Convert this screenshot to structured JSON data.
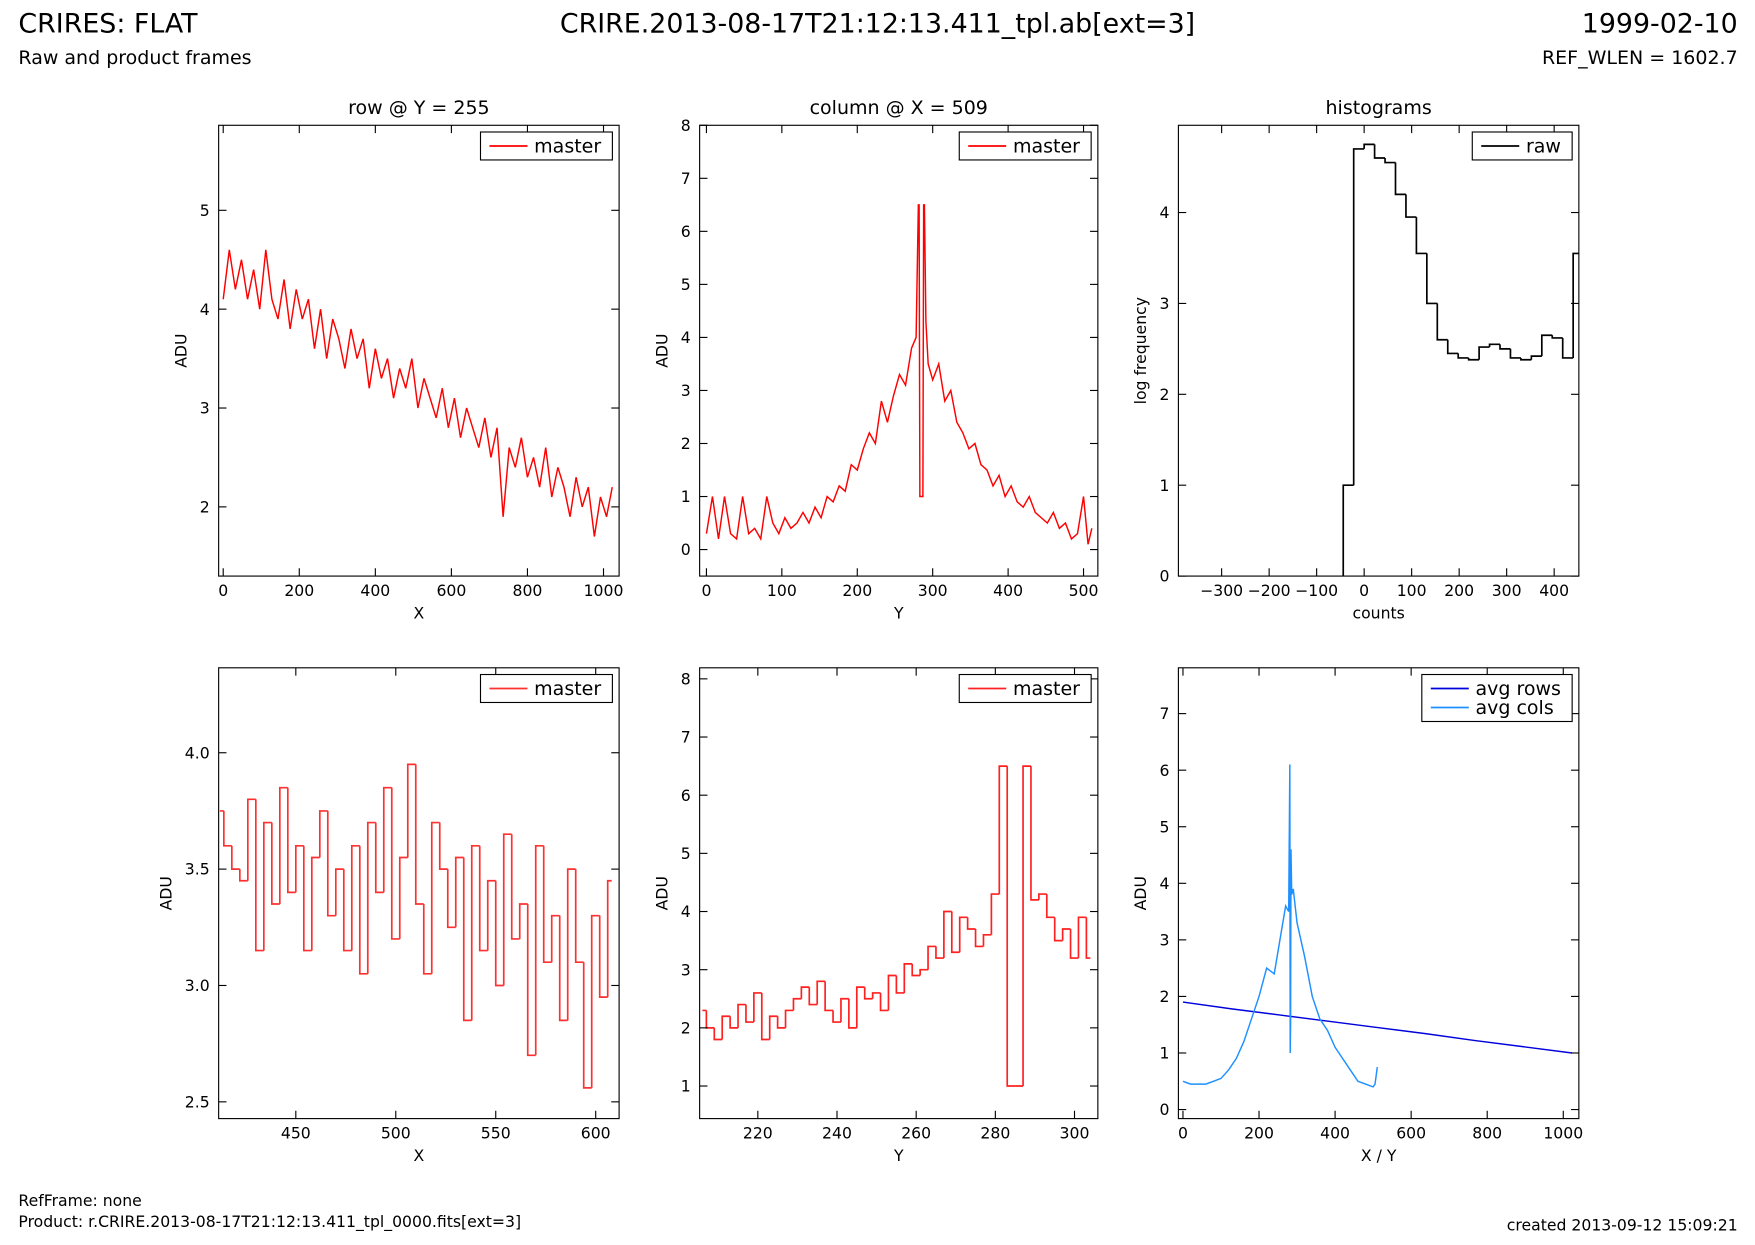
{
  "page": {
    "title": "CRIRES: FLAT",
    "subtitle": "Raw and product frames",
    "file": "CRIRE.2013-08-17T21:12:13.411_tpl.ab[ext=3]",
    "date": "1999-02-10",
    "ref_wlen": "REF_WLEN = 1602.7",
    "ref_frame": "RefFrame: none",
    "product": "Product: r.CRIRE.2013-08-17T21:12:13.411_tpl_0000.fits[ext=3]",
    "created": "created 2013-09-12 15:09:21"
  },
  "chart_data": [
    {
      "type": "line",
      "title": "row @ Y = 255",
      "xlabel": "X",
      "ylabel": "ADU",
      "xlim": [
        -12,
        1041
      ],
      "ylim": [
        1.3,
        5.86
      ],
      "xticks": [
        0,
        200,
        400,
        600,
        800,
        1000
      ],
      "yticks": [
        2,
        3,
        4,
        5
      ],
      "legend": "upper right",
      "series": [
        {
          "name": "master",
          "color": "#ff0000",
          "x": [
            0,
            16,
            32,
            48,
            64,
            80,
            96,
            112,
            128,
            144,
            160,
            176,
            192,
            208,
            224,
            240,
            256,
            272,
            288,
            304,
            320,
            336,
            352,
            368,
            384,
            400,
            416,
            432,
            448,
            464,
            480,
            496,
            512,
            528,
            544,
            560,
            576,
            592,
            608,
            624,
            640,
            656,
            672,
            688,
            704,
            720,
            736,
            752,
            768,
            784,
            800,
            816,
            832,
            848,
            864,
            880,
            896,
            912,
            928,
            944,
            960,
            976,
            992,
            1008,
            1023
          ],
          "values": [
            4.1,
            4.6,
            4.2,
            4.5,
            4.1,
            4.4,
            4.0,
            4.6,
            4.1,
            3.9,
            4.3,
            3.8,
            4.2,
            3.9,
            4.1,
            3.6,
            4.0,
            3.5,
            3.9,
            3.7,
            3.4,
            3.8,
            3.5,
            3.7,
            3.2,
            3.6,
            3.3,
            3.5,
            3.1,
            3.4,
            3.2,
            3.5,
            3.0,
            3.3,
            3.1,
            2.9,
            3.2,
            2.8,
            3.1,
            2.7,
            3.0,
            2.8,
            2.6,
            2.9,
            2.5,
            2.8,
            1.9,
            2.6,
            2.4,
            2.7,
            2.3,
            2.5,
            2.2,
            2.6,
            2.1,
            2.4,
            2.2,
            1.9,
            2.3,
            2.0,
            2.2,
            1.7,
            2.1,
            1.9,
            2.2
          ]
        }
      ]
    },
    {
      "type": "line",
      "title": "column @ X = 509",
      "xlabel": "Y",
      "ylabel": "ADU",
      "xlim": [
        -9,
        519
      ],
      "ylim": [
        -0.5,
        8
      ],
      "xticks": [
        0,
        100,
        200,
        300,
        400,
        500
      ],
      "yticks": [
        0,
        1,
        2,
        3,
        4,
        5,
        6,
        7,
        8
      ],
      "legend": "upper right",
      "series": [
        {
          "name": "master",
          "color": "#ff0000",
          "x": [
            0,
            8,
            16,
            24,
            32,
            40,
            48,
            56,
            64,
            72,
            80,
            88,
            96,
            104,
            112,
            120,
            128,
            136,
            144,
            152,
            160,
            168,
            176,
            184,
            192,
            200,
            208,
            216,
            224,
            232,
            240,
            248,
            256,
            264,
            272,
            278,
            281,
            282,
            283,
            285,
            287,
            288,
            289,
            291,
            294,
            300,
            308,
            316,
            324,
            332,
            340,
            348,
            356,
            364,
            372,
            380,
            388,
            396,
            404,
            412,
            420,
            428,
            436,
            444,
            452,
            460,
            468,
            476,
            484,
            492,
            500,
            506,
            511
          ],
          "values": [
            0.3,
            1.0,
            0.2,
            1.0,
            0.3,
            0.2,
            1.0,
            0.3,
            0.4,
            0.2,
            1.0,
            0.5,
            0.3,
            0.6,
            0.4,
            0.5,
            0.7,
            0.5,
            0.8,
            0.6,
            1.0,
            0.9,
            1.2,
            1.1,
            1.6,
            1.5,
            1.9,
            2.2,
            2.0,
            2.8,
            2.4,
            2.9,
            3.3,
            3.1,
            3.8,
            4.0,
            6.5,
            6.5,
            1.0,
            1.0,
            1.0,
            6.5,
            6.5,
            4.3,
            3.5,
            3.2,
            3.5,
            2.8,
            3.0,
            2.4,
            2.2,
            1.9,
            2.0,
            1.6,
            1.5,
            1.2,
            1.4,
            1.0,
            1.2,
            0.9,
            0.8,
            1.0,
            0.7,
            0.6,
            0.5,
            0.7,
            0.4,
            0.5,
            0.2,
            0.3,
            1.0,
            0.1,
            0.4
          ]
        }
      ]
    },
    {
      "type": "histogram",
      "title": "histograms",
      "xlabel": "counts",
      "ylabel": "log frequency",
      "xlim": [
        -391,
        452
      ],
      "ylim": [
        0,
        4.96
      ],
      "xticks": [
        {
          "value": -300,
          "label": "−300"
        },
        {
          "value": -200,
          "label": "−200"
        },
        {
          "value": -100,
          "label": "−100"
        },
        0,
        100,
        200,
        300,
        400
      ],
      "yticks": [
        0,
        1,
        2,
        3,
        4
      ],
      "legend": "upper right",
      "bins": [
        -44,
        -22,
        0,
        22,
        44,
        66,
        88,
        110,
        132,
        154,
        176,
        198,
        220,
        242,
        264,
        286,
        308,
        330,
        352,
        374,
        396,
        418,
        440,
        462
      ],
      "series": [
        {
          "name": "raw",
          "color": "#000000",
          "values": [
            1.0,
            4.7,
            4.75,
            4.6,
            4.55,
            4.2,
            3.95,
            3.55,
            3.0,
            2.6,
            2.45,
            2.4,
            2.38,
            2.52,
            2.55,
            2.5,
            2.4,
            2.38,
            2.42,
            2.65,
            2.62,
            2.4,
            3.55
          ]
        }
      ]
    },
    {
      "type": "line",
      "step": true,
      "xlabel": "X",
      "ylabel": "ADU",
      "xlim": [
        411.4,
        611.7
      ],
      "ylim": [
        2.428,
        4.365
      ],
      "xticks": [
        450,
        500,
        550,
        600
      ],
      "yticks": [
        2.5,
        {
          "value": 3,
          "label": "3.0"
        },
        3.5,
        {
          "value": 4,
          "label": "4.0"
        }
      ],
      "legend": "upper right",
      "series": [
        {
          "name": "master",
          "color": "#ff3030",
          "x": [
            412,
            416,
            420,
            424,
            428,
            432,
            436,
            440,
            444,
            448,
            452,
            456,
            460,
            464,
            468,
            472,
            476,
            480,
            484,
            488,
            492,
            496,
            500,
            504,
            508,
            512,
            516,
            520,
            524,
            528,
            532,
            536,
            540,
            544,
            548,
            552,
            556,
            560,
            564,
            568,
            572,
            576,
            580,
            584,
            588,
            592,
            596,
            600,
            604,
            608
          ],
          "values": [
            3.75,
            3.6,
            3.5,
            3.45,
            3.8,
            3.15,
            3.7,
            3.35,
            3.85,
            3.4,
            3.6,
            3.15,
            3.55,
            3.75,
            3.3,
            3.5,
            3.15,
            3.6,
            3.05,
            3.7,
            3.4,
            3.85,
            3.2,
            3.55,
            3.95,
            3.35,
            3.05,
            3.7,
            3.5,
            3.25,
            3.55,
            2.85,
            3.6,
            3.15,
            3.45,
            3.0,
            3.65,
            3.2,
            3.35,
            2.7,
            3.6,
            3.1,
            3.3,
            2.85,
            3.5,
            3.1,
            2.56,
            3.3,
            2.95,
            3.45
          ]
        }
      ]
    },
    {
      "type": "line",
      "step": true,
      "xlabel": "Y",
      "ylabel": "ADU",
      "xlim": [
        205.3,
        305.9
      ],
      "ylim": [
        0.44,
        8.19
      ],
      "xticks": [
        220,
        240,
        260,
        280,
        300
      ],
      "yticks": [
        1,
        2,
        3,
        4,
        5,
        6,
        7,
        8
      ],
      "legend": "upper right",
      "series": [
        {
          "name": "master",
          "color": "#ff2020",
          "x": [
            206,
            208,
            210,
            212,
            214,
            216,
            218,
            220,
            222,
            224,
            226,
            228,
            230,
            232,
            234,
            236,
            238,
            240,
            242,
            244,
            246,
            248,
            250,
            252,
            254,
            256,
            258,
            260,
            262,
            264,
            266,
            268,
            270,
            272,
            274,
            276,
            278,
            280,
            282,
            284,
            286,
            288,
            290,
            292,
            294,
            296,
            298,
            300,
            302,
            304
          ],
          "values": [
            2.3,
            2.0,
            1.8,
            2.2,
            2.0,
            2.4,
            2.1,
            2.6,
            1.8,
            2.2,
            2.0,
            2.3,
            2.5,
            2.7,
            2.4,
            2.8,
            2.3,
            2.1,
            2.5,
            2.0,
            2.7,
            2.5,
            2.6,
            2.3,
            2.9,
            2.6,
            3.1,
            2.9,
            3.0,
            3.4,
            3.2,
            4.0,
            3.3,
            3.9,
            3.7,
            3.4,
            3.6,
            4.3,
            6.5,
            1.0,
            1.0,
            6.5,
            4.2,
            4.3,
            3.9,
            3.5,
            3.7,
            3.2,
            3.9,
            3.2
          ]
        }
      ]
    },
    {
      "type": "line",
      "xlabel": "X / Y",
      "ylabel": "ADU",
      "xlim": [
        -12,
        1041
      ],
      "ylim": [
        -0.16,
        7.81
      ],
      "xticks": [
        0,
        200,
        400,
        600,
        800,
        1000
      ],
      "yticks": [
        0,
        1,
        2,
        3,
        4,
        5,
        6,
        7
      ],
      "legend": "upper right",
      "series": [
        {
          "name": "avg rows",
          "color": "#0000dd",
          "x": [
            0,
            128,
            256,
            384,
            512,
            640,
            768,
            896,
            1023
          ],
          "values": [
            1.9,
            1.78,
            1.67,
            1.56,
            1.45,
            1.34,
            1.22,
            1.11,
            1.0
          ]
        },
        {
          "name": "avg cols",
          "color": "#1e90ff",
          "x": [
            0,
            20,
            40,
            60,
            80,
            100,
            120,
            140,
            160,
            180,
            200,
            220,
            240,
            260,
            270,
            278,
            281,
            282,
            283,
            284,
            286,
            290,
            300,
            320,
            340,
            360,
            380,
            400,
            420,
            440,
            460,
            480,
            500,
            505,
            511
          ],
          "values": [
            0.5,
            0.45,
            0.45,
            0.45,
            0.5,
            0.55,
            0.7,
            0.9,
            1.2,
            1.6,
            2.0,
            2.5,
            2.4,
            3.2,
            3.6,
            3.5,
            6.1,
            1.0,
            1.5,
            4.6,
            3.8,
            3.9,
            3.3,
            2.7,
            2.0,
            1.6,
            1.4,
            1.1,
            0.9,
            0.7,
            0.5,
            0.45,
            0.4,
            0.45,
            0.75
          ]
        }
      ]
    }
  ]
}
